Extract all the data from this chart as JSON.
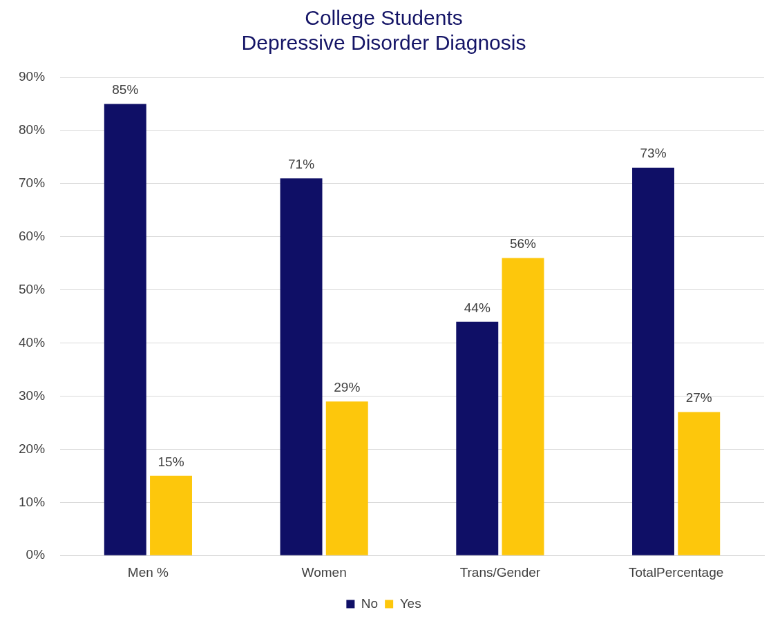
{
  "chart_data": {
    "type": "bar",
    "title": "College Students\nDepressive Disorder Diagnosis",
    "categories": [
      "Men %",
      "Women",
      "Trans/Gender",
      "TotalPercentage"
    ],
    "series": [
      {
        "name": "No",
        "color": "#0f0f66",
        "values": [
          85,
          71,
          44,
          73
        ],
        "value_labels": [
          "85%",
          "71%",
          "44%",
          "73%"
        ]
      },
      {
        "name": "Yes",
        "color": "#fdc70c",
        "values": [
          15,
          29,
          56,
          27
        ],
        "value_labels": [
          "15%",
          "29%",
          "56%",
          "27%"
        ]
      }
    ],
    "ylim": [
      0,
      90
    ],
    "yticks": [
      {
        "value": 0,
        "label": "0%"
      },
      {
        "value": 10,
        "label": "10%"
      },
      {
        "value": 20,
        "label": "20%"
      },
      {
        "value": 30,
        "label": "30%"
      },
      {
        "value": 40,
        "label": "40%"
      },
      {
        "value": 50,
        "label": "50%"
      },
      {
        "value": 60,
        "label": "60%"
      },
      {
        "value": 70,
        "label": "70%"
      },
      {
        "value": 80,
        "label": "80%"
      },
      {
        "value": 90,
        "label": "90%"
      }
    ],
    "grid": "y",
    "legend": "bottom"
  }
}
